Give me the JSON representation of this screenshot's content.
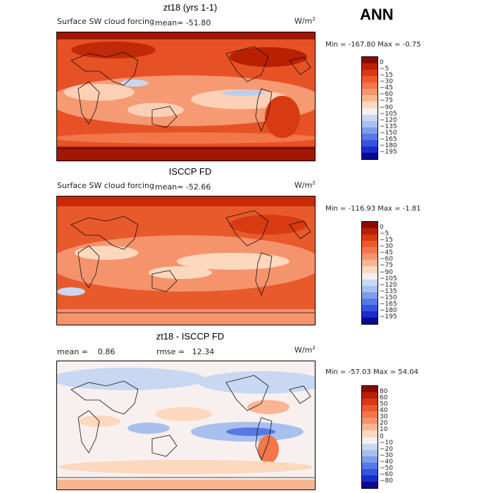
{
  "header": {
    "season": "ANN"
  },
  "panels": [
    {
      "id": "model",
      "title": "zt18 (yrs 1-1)",
      "left_label": "Surface SW cloud forcing",
      "mean_label": "mean=",
      "mean_value": "-51.80",
      "units_base": "W/m",
      "units_exp": "2",
      "min_label": "Min =",
      "min_value": "-167.80",
      "max_label": "Max =",
      "max_value": "-0.75"
    },
    {
      "id": "obs",
      "title": "ISCCP FD",
      "left_label": "Surface SW cloud forcing",
      "mean_label": "mean=",
      "mean_value": "-52.66",
      "units_base": "W/m",
      "units_exp": "2",
      "min_label": "Min =",
      "min_value": "-116.93",
      "max_label": "Max =",
      "max_value": "-1.81"
    },
    {
      "id": "diff",
      "title": "zt18 - ISCCP FD",
      "mean_label": "mean =",
      "mean_value": "0.86",
      "rmse_label": "rmse =",
      "rmse_value": "12.34",
      "units_base": "W/m",
      "units_exp": "2",
      "min_label": "Min =",
      "min_value": "-57.03",
      "max_label": "Max =",
      "max_value": "54.04"
    }
  ],
  "chart_data": [
    {
      "type": "heatmap",
      "title": "zt18 (yrs 1-1)",
      "subtitle": "Surface SW cloud forcing",
      "units": "W/m2",
      "mean": -51.8,
      "min": -167.8,
      "max": -0.75,
      "contour_levels": [
        0,
        -5,
        -15,
        -30,
        -45,
        -60,
        -75,
        -90,
        -105,
        -120,
        -135,
        -150,
        -165,
        -180,
        -195
      ],
      "colors": [
        "#8b0a00",
        "#b82000",
        "#d83a12",
        "#ea5a2c",
        "#f2774a",
        "#f5946c",
        "#f9b592",
        "#fcd8bf",
        "#f5f0f0",
        "#c8d8f2",
        "#a8c0ee",
        "#7d9de8",
        "#5679e6",
        "#3355de",
        "#1a2dc8",
        "#0a0a90"
      ]
    },
    {
      "type": "heatmap",
      "title": "ISCCP FD",
      "subtitle": "Surface SW cloud forcing",
      "units": "W/m2",
      "mean": -52.66,
      "min": -116.93,
      "max": -1.81,
      "contour_levels": [
        0,
        -5,
        -15,
        -30,
        -45,
        -60,
        -75,
        -90,
        -105,
        -120,
        -135,
        -150,
        -165,
        -180,
        -195
      ],
      "colors": [
        "#8b0a00",
        "#b82000",
        "#d83a12",
        "#ea5a2c",
        "#f2774a",
        "#f5946c",
        "#f9b592",
        "#fcd8bf",
        "#f5f0f0",
        "#c8d8f2",
        "#a8c0ee",
        "#7d9de8",
        "#5679e6",
        "#3355de",
        "#1a2dc8",
        "#0a0a90"
      ]
    },
    {
      "type": "heatmap",
      "title": "zt18 - ISCCP FD",
      "units": "W/m2",
      "mean": 0.86,
      "rmse": 12.34,
      "min": -57.03,
      "max": 54.04,
      "contour_levels": [
        80,
        60,
        50,
        40,
        30,
        20,
        10,
        0,
        -10,
        -20,
        -30,
        -40,
        -50,
        -60,
        -80
      ],
      "colors": [
        "#8b0a00",
        "#b82000",
        "#d83a12",
        "#ea5a2c",
        "#f2774a",
        "#f5946c",
        "#f9b592",
        "#fcd8bf",
        "#f5f0f0",
        "#c8d8f2",
        "#a8c0ee",
        "#7d9de8",
        "#5679e6",
        "#3355de",
        "#1a2dc8",
        "#0a0a90"
      ]
    }
  ]
}
